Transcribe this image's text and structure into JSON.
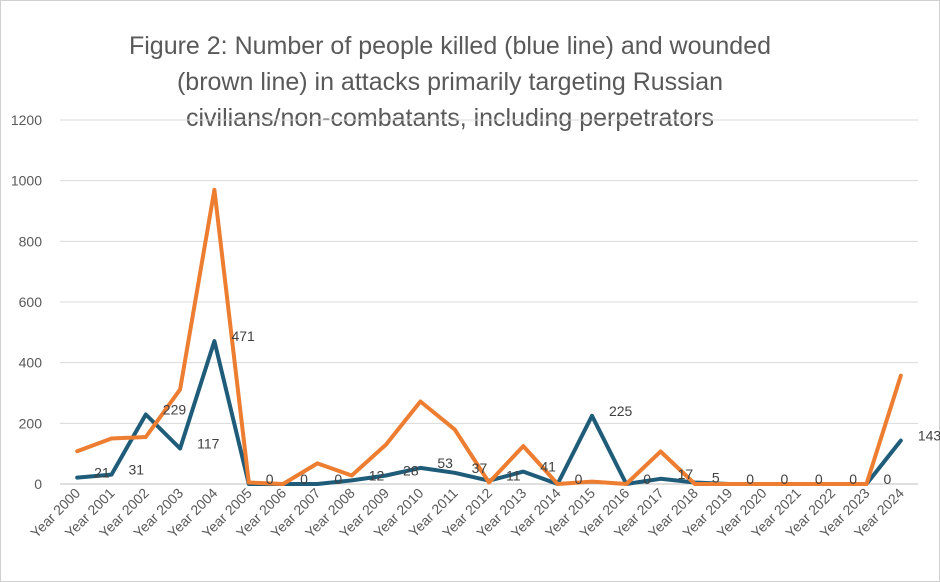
{
  "chart_data": {
    "type": "line",
    "title_lines": [
      "Figure 2: Number of people killed (blue line) and wounded",
      "(brown line) in attacks  primarily targeting Russian",
      "civilians/non-combatants, including perpetrators"
    ],
    "categories": [
      "Year 2000",
      "Year 2001",
      "Year 2002",
      "Year 2003",
      "Year 2004",
      "Year 2005",
      "Year 2006",
      "Year 2007",
      "Year 2008",
      "Year 2009",
      "Year 2010",
      "Year 2011",
      "Year 2012",
      "Year 2013",
      "Year 2014",
      "Year 2015",
      "Year 2016",
      "Year 2017",
      "Year 2018",
      "Year 2019",
      "Year 2020",
      "Year 2021",
      "Year 2022",
      "Year 2023",
      "Year 2024"
    ],
    "ylim": [
      0,
      1200
    ],
    "yticks": [
      0,
      200,
      400,
      600,
      800,
      1000,
      1200
    ],
    "grid": true,
    "series": [
      {
        "color": "#1F5C7A",
        "values": [
          21,
          31,
          229,
          117,
          471,
          0,
          0,
          0,
          12,
          28,
          53,
          37,
          11,
          41,
          0,
          225,
          0,
          17,
          5,
          0,
          0,
          0,
          0,
          0,
          143
        ],
        "data_labels": [
          "21",
          "31",
          "229",
          "117",
          "471",
          "0",
          "0",
          "0",
          "12",
          "28",
          "53",
          "37",
          "11",
          "41",
          "0",
          "225",
          "0",
          "17",
          "5",
          "0",
          "0",
          "0",
          "0",
          "0",
          "143"
        ]
      },
      {
        "color": "#ED7D31",
        "values": [
          108,
          150,
          155,
          312,
          970,
          5,
          0,
          68,
          28,
          130,
          272,
          180,
          5,
          125,
          0,
          8,
          0,
          107,
          0,
          0,
          0,
          0,
          0,
          0,
          357
        ]
      }
    ]
  }
}
